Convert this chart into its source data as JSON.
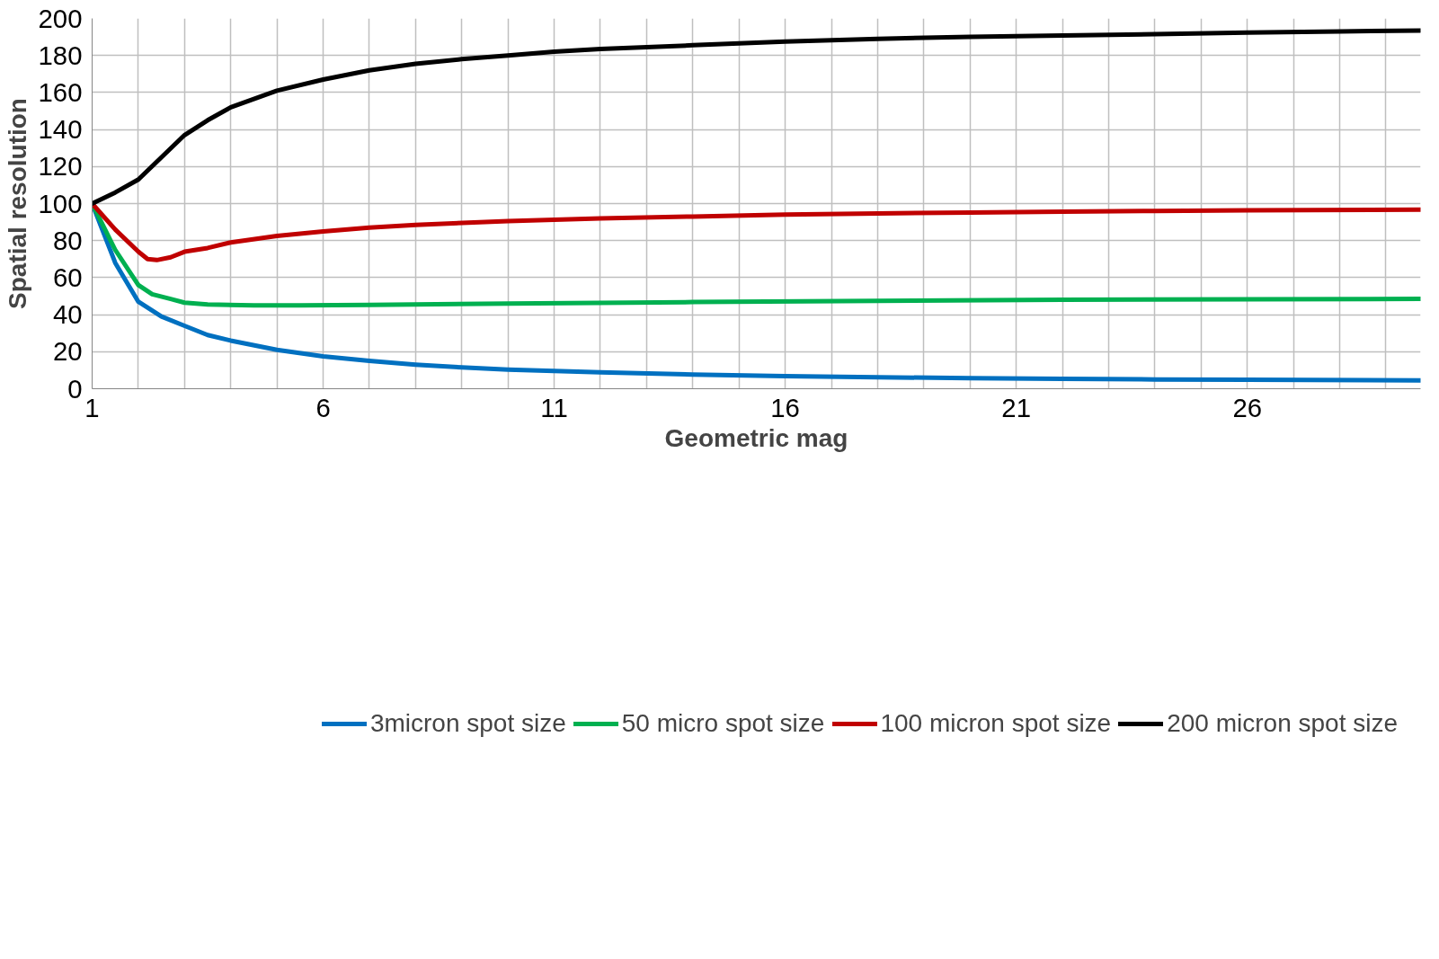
{
  "chart_data": {
    "type": "line",
    "xlabel": "Geometric mag",
    "ylabel": "Spatial resolution",
    "xlim": [
      1,
      29.75
    ],
    "ylim": [
      0,
      200
    ],
    "xticks": [
      1,
      {
        "value": 2,
        "label": null
      },
      {
        "value": 3,
        "label": null
      },
      {
        "value": 4,
        "label": null
      },
      {
        "value": 5,
        "label": null
      },
      6,
      {
        "value": 7,
        "label": null
      },
      {
        "value": 8,
        "label": null
      },
      {
        "value": 9,
        "label": null
      },
      {
        "value": 10,
        "label": null
      },
      11,
      {
        "value": 12,
        "label": null
      },
      {
        "value": 13,
        "label": null
      },
      {
        "value": 14,
        "label": null
      },
      {
        "value": 15,
        "label": null
      },
      16,
      {
        "value": 17,
        "label": null
      },
      {
        "value": 18,
        "label": null
      },
      {
        "value": 19,
        "label": null
      },
      {
        "value": 20,
        "label": null
      },
      21,
      {
        "value": 22,
        "label": null
      },
      {
        "value": 23,
        "label": null
      },
      {
        "value": 24,
        "label": null
      },
      {
        "value": 25,
        "label": null
      },
      26,
      {
        "value": 27,
        "label": null
      },
      {
        "value": 28,
        "label": null
      },
      {
        "value": 29,
        "label": null
      }
    ],
    "yticks": [
      0,
      20,
      40,
      60,
      80,
      100,
      120,
      140,
      160,
      180,
      200
    ],
    "grid": true,
    "legend": "bottom",
    "marker": "none",
    "line_style": "solid",
    "series": [
      {
        "name": "3micron spot size",
        "color": "#0070c0",
        "x": [
          1,
          1.5,
          2,
          2.5,
          3,
          3.5,
          4,
          5,
          6,
          7,
          8,
          9,
          10,
          12,
          14,
          16,
          18,
          20,
          22,
          24,
          26,
          29.75
        ],
        "values": [
          100,
          68,
          47,
          39,
          34,
          29,
          26,
          21,
          17.5,
          15,
          13,
          11.5,
          10.3,
          8.8,
          7.7,
          6.8,
          6.2,
          5.7,
          5.3,
          5,
          4.8,
          4.5
        ]
      },
      {
        "name": "50 micro spot size",
        "color": "#00b050",
        "x": [
          1,
          1.5,
          2,
          2.3,
          2.7,
          3,
          3.5,
          4.5,
          5.5,
          7,
          10,
          14,
          18,
          22,
          26,
          29.75
        ],
        "values": [
          100,
          75,
          56,
          51,
          48.5,
          46.5,
          45.5,
          45,
          45,
          45.3,
          46,
          46.8,
          47.5,
          48,
          48.3,
          48.5
        ]
      },
      {
        "name": "100 micron spot size",
        "color": "#c00000",
        "x": [
          1,
          1.5,
          2,
          2.2,
          2.4,
          2.7,
          3,
          3.5,
          4,
          5,
          6,
          7,
          8,
          10,
          12,
          14,
          16,
          18,
          20,
          22,
          24,
          26,
          29.75
        ],
        "values": [
          100,
          86,
          74,
          70,
          69.5,
          71,
          74,
          76,
          79,
          82.5,
          85,
          87,
          88.5,
          90.5,
          92,
          93,
          94,
          94.7,
          95.2,
          95.6,
          96,
          96.3,
          96.7
        ]
      },
      {
        "name": "200 micron spot size",
        "color": "#000000",
        "x": [
          1,
          1.5,
          2,
          2.5,
          3,
          3.5,
          4,
          5,
          6,
          7,
          8,
          9,
          10,
          11,
          12,
          14,
          16,
          18,
          20,
          22,
          24,
          26,
          28,
          29.75
        ],
        "values": [
          100,
          106,
          113,
          125,
          137,
          145,
          152,
          161,
          167,
          172,
          175.5,
          178,
          180,
          182,
          183.5,
          185.5,
          187.5,
          189,
          190,
          190.8,
          191.5,
          192.3,
          193,
          193.5
        ]
      }
    ]
  }
}
